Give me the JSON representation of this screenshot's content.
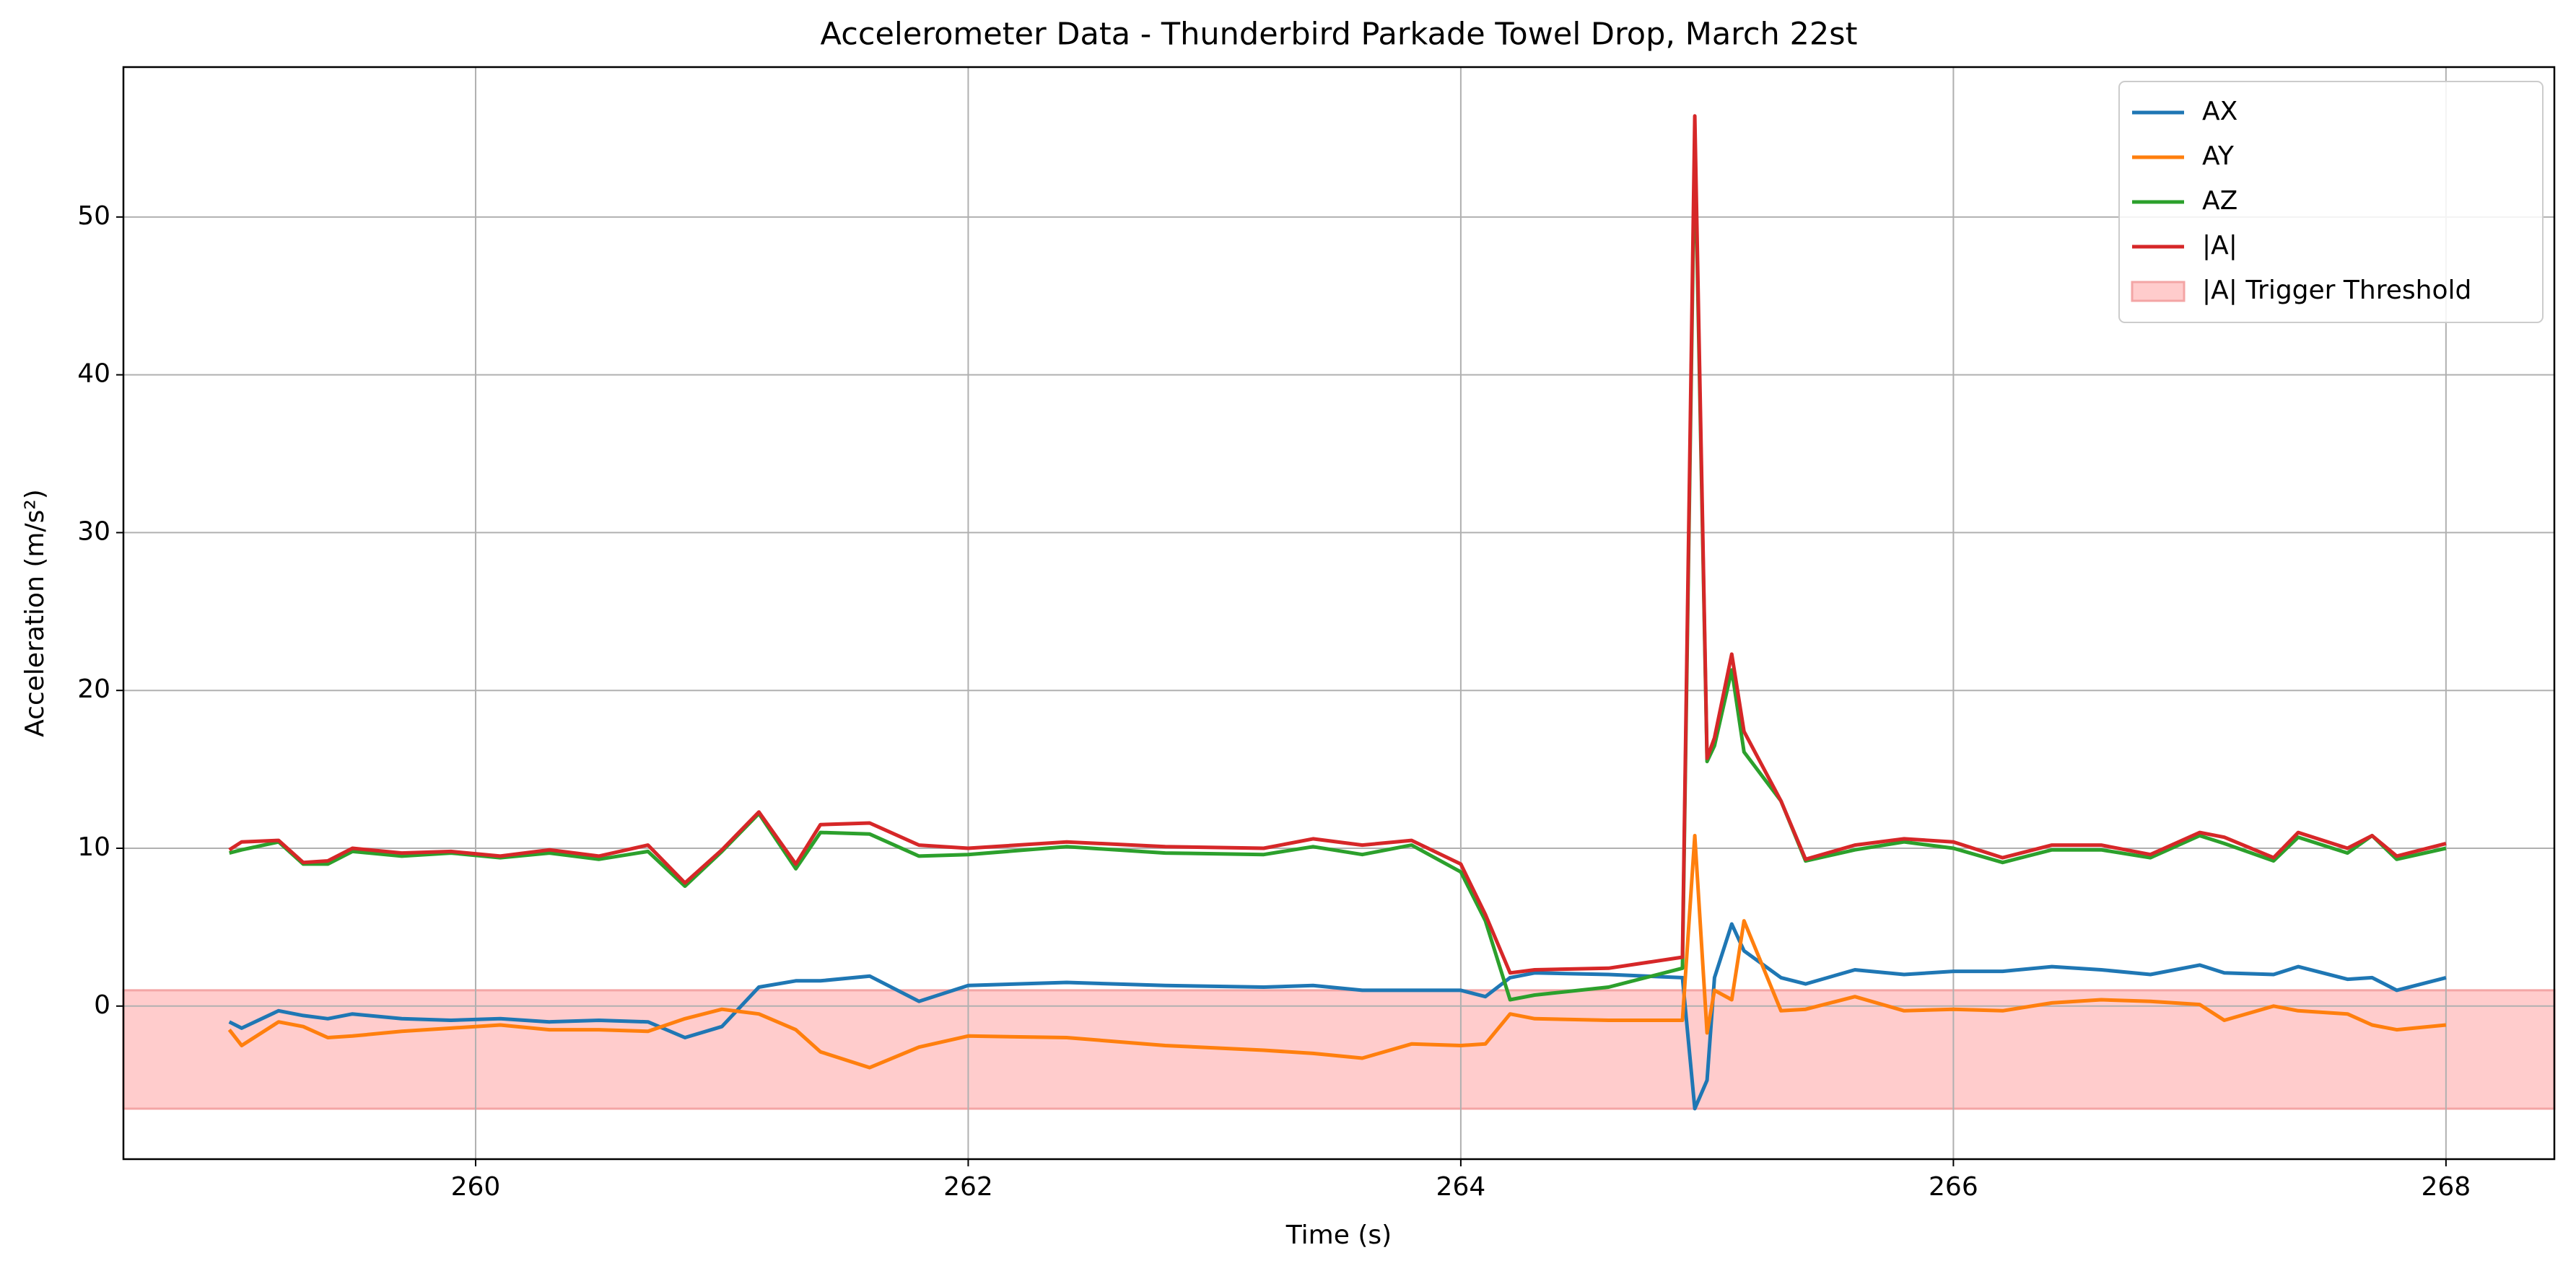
{
  "chart_data": {
    "type": "line",
    "title": "Accelerometer Data - Thunderbird Parkade Towel Drop, March 22st",
    "x_label": "Time (s)",
    "y_label": "Acceleration (m/s²)",
    "x": [
      259.0,
      259.05,
      259.2,
      259.3,
      259.4,
      259.5,
      259.7,
      259.9,
      260.1,
      260.3,
      260.5,
      260.7,
      260.85,
      261.0,
      261.15,
      261.3,
      261.4,
      261.6,
      261.8,
      262.0,
      262.4,
      262.8,
      263.2,
      263.4,
      263.6,
      263.8,
      264.0,
      264.1,
      264.2,
      264.3,
      264.6,
      264.9,
      264.95,
      265.0,
      265.03,
      265.1,
      265.15,
      265.3,
      265.4,
      265.6,
      265.8,
      266.0,
      266.2,
      266.4,
      266.6,
      266.8,
      267.0,
      267.1,
      267.3,
      267.4,
      267.6,
      267.7,
      267.8,
      268.0
    ],
    "series": [
      {
        "name": "AX",
        "color": "#1f77b4",
        "values": [
          -1.0,
          -1.4,
          -0.3,
          -0.6,
          -0.8,
          -0.5,
          -0.8,
          -0.9,
          -0.8,
          -1.0,
          -0.9,
          -1.0,
          -2.0,
          -1.3,
          1.2,
          1.6,
          1.6,
          1.9,
          0.3,
          1.3,
          1.5,
          1.3,
          1.2,
          1.3,
          1.0,
          1.0,
          1.0,
          0.6,
          1.8,
          2.1,
          2.0,
          1.8,
          -6.5,
          -4.7,
          1.8,
          5.2,
          3.5,
          1.8,
          1.4,
          2.3,
          2.0,
          2.2,
          2.2,
          2.5,
          2.3,
          2.0,
          2.6,
          2.1,
          2.0,
          2.5,
          1.7,
          1.8,
          1.0,
          1.8
        ]
      },
      {
        "name": "AY",
        "color": "#ff7f0e",
        "values": [
          -1.5,
          -2.5,
          -1.0,
          -1.3,
          -2.0,
          -1.9,
          -1.6,
          -1.4,
          -1.2,
          -1.5,
          -1.5,
          -1.6,
          -0.8,
          -0.2,
          -0.5,
          -1.5,
          -2.9,
          -3.9,
          -2.6,
          -1.9,
          -2.0,
          -2.5,
          -2.8,
          -3.0,
          -3.3,
          -2.4,
          -2.5,
          -2.4,
          -0.5,
          -0.8,
          -0.9,
          -0.9,
          10.8,
          -1.7,
          1.0,
          0.4,
          5.4,
          -0.3,
          -0.2,
          0.6,
          -0.3,
          -0.2,
          -0.3,
          0.2,
          0.4,
          0.3,
          0.1,
          -0.9,
          0.0,
          -0.3,
          -0.5,
          -1.2,
          -1.5,
          -1.2
        ]
      },
      {
        "name": "AZ",
        "color": "#2ca02c",
        "values": [
          9.7,
          9.9,
          10.4,
          9.0,
          9.0,
          9.8,
          9.5,
          9.7,
          9.4,
          9.7,
          9.3,
          9.8,
          7.6,
          9.8,
          12.2,
          8.7,
          11.0,
          10.9,
          9.5,
          9.6,
          10.1,
          9.7,
          9.6,
          10.1,
          9.6,
          10.2,
          8.5,
          5.4,
          0.4,
          0.7,
          1.2,
          2.4,
          55.0,
          15.5,
          16.5,
          21.3,
          16.1,
          13.0,
          9.2,
          9.9,
          10.4,
          10.0,
          9.1,
          9.9,
          9.9,
          9.4,
          10.8,
          10.3,
          9.2,
          10.7,
          9.7,
          10.8,
          9.3,
          10.0
        ]
      },
      {
        "name": "|A|",
        "color": "#d62728",
        "values": [
          9.9,
          10.4,
          10.5,
          9.1,
          9.2,
          10.0,
          9.7,
          9.8,
          9.5,
          9.9,
          9.5,
          10.2,
          7.8,
          9.9,
          12.3,
          9.0,
          11.5,
          11.6,
          10.2,
          10.0,
          10.4,
          10.1,
          10.0,
          10.6,
          10.2,
          10.5,
          9.0,
          5.8,
          2.1,
          2.3,
          2.4,
          3.1,
          56.4,
          15.7,
          17.0,
          22.3,
          17.4,
          13.0,
          9.3,
          10.2,
          10.6,
          10.4,
          9.4,
          10.2,
          10.2,
          9.6,
          11.0,
          10.7,
          9.4,
          11.0,
          10.0,
          10.8,
          9.5,
          10.3
        ]
      }
    ],
    "threshold": {
      "name": "|A| Trigger Threshold",
      "range": [
        -6.5,
        1.0
      ],
      "color": "#ffcccc",
      "edge_color": "#f3a5a5"
    },
    "xlim": [
      258.57,
      268.44
    ],
    "ylim": [
      -9.7,
      59.5
    ],
    "xticks": [
      260,
      262,
      264,
      266,
      268
    ],
    "yticks": [
      0,
      10,
      20,
      30,
      40,
      50
    ],
    "grid": true,
    "legend": "upper right"
  }
}
